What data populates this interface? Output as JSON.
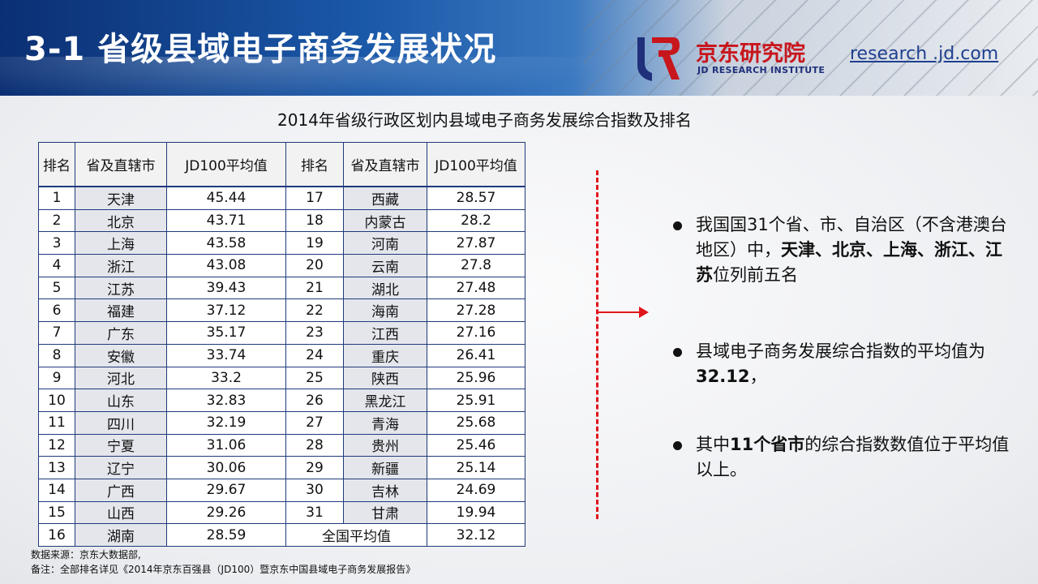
{
  "header": {
    "title": "3-1 省级县域电子商务发展状况",
    "logo_cn": "京东研究院",
    "logo_en": "JD RESEARCH INSTITUTE",
    "url": "research .jd.com"
  },
  "table": {
    "title": "2014年省级行政区划内县域电子商务发展综合指数及排名",
    "headers": [
      "排名",
      "省及直辖市",
      "JD100平均值",
      "排名",
      "省及直辖市",
      "JD100平均值"
    ],
    "rows": [
      [
        "1",
        "天津",
        "45.44",
        "17",
        "西藏",
        "28.57"
      ],
      [
        "2",
        "北京",
        "43.71",
        "18",
        "内蒙古",
        "28.2"
      ],
      [
        "3",
        "上海",
        "43.58",
        "19",
        "河南",
        "27.87"
      ],
      [
        "4",
        "浙江",
        "43.08",
        "20",
        "云南",
        "27.8"
      ],
      [
        "5",
        "江苏",
        "39.43",
        "21",
        "湖北",
        "27.48"
      ],
      [
        "6",
        "福建",
        "37.12",
        "22",
        "海南",
        "27.28"
      ],
      [
        "7",
        "广东",
        "35.17",
        "23",
        "江西",
        "27.16"
      ],
      [
        "8",
        "安徽",
        "33.74",
        "24",
        "重庆",
        "26.41"
      ],
      [
        "9",
        "河北",
        "33.2",
        "25",
        "陕西",
        "25.96"
      ],
      [
        "10",
        "山东",
        "32.83",
        "26",
        "黑龙江",
        "25.91"
      ],
      [
        "11",
        "四川",
        "32.19",
        "27",
        "青海",
        "25.68"
      ],
      [
        "12",
        "宁夏",
        "31.06",
        "28",
        "贵州",
        "25.46"
      ],
      [
        "13",
        "辽宁",
        "30.06",
        "29",
        "新疆",
        "25.14"
      ],
      [
        "14",
        "广西",
        "29.67",
        "30",
        "吉林",
        "24.69"
      ],
      [
        "15",
        "山西",
        "29.26",
        "31",
        "甘肃",
        "19.94"
      ]
    ],
    "last_row": {
      "rank": "16",
      "province": "湖南",
      "value": "28.59",
      "avg_label": "全国平均值",
      "avg_value": "32.12"
    }
  },
  "bullets": [
    {
      "pre": "我国国31个省、市、自治区（不含港澳台地区）中，",
      "bold": "天津、北京、上海、浙江、江苏",
      "post": "位列前五名"
    },
    {
      "pre": "县域电子商务发展综合指数的平均值为",
      "bold": "32.12",
      "post": "，"
    },
    {
      "pre": "其中",
      "bold": "11个省市",
      "post": "的综合指数数值位于平均值以上。"
    }
  ],
  "footer": {
    "source": "数据来源：京东大数据部,",
    "note": "备注：全部排名详见《2014年京东百强县（JD100）暨京东中国县域电子商务发展报告》"
  },
  "colors": {
    "accent_red": "#e0161d",
    "title_blue": "#0b2f73",
    "table_border": "#1f3a7a"
  }
}
